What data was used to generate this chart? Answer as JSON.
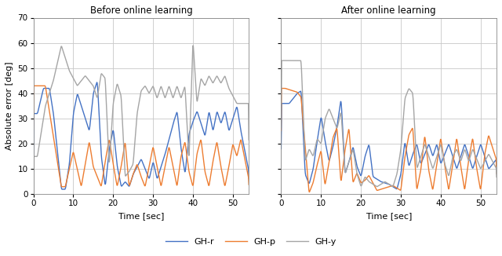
{
  "title_left": "Before online learning",
  "title_right": "After online learning",
  "ylabel": "Absolute error [deg]",
  "xlabel": "Time [sec]",
  "ylim": [
    0,
    70
  ],
  "xlim": [
    0,
    54
  ],
  "xticks": [
    0,
    10,
    20,
    30,
    40,
    50
  ],
  "yticks": [
    0,
    10,
    20,
    30,
    40,
    50,
    60,
    70
  ],
  "colors": {
    "GH-r": "#4472C4",
    "GH-p": "#ED7D31",
    "GH-y": "#A5A5A5"
  },
  "legend_labels": [
    "GH-r",
    "GH-p",
    "GH-y"
  ],
  "linewidth": 1.0,
  "background_color": "#ffffff",
  "plot_bg_color": "#ffffff",
  "grid_color": "#c8c8c8"
}
